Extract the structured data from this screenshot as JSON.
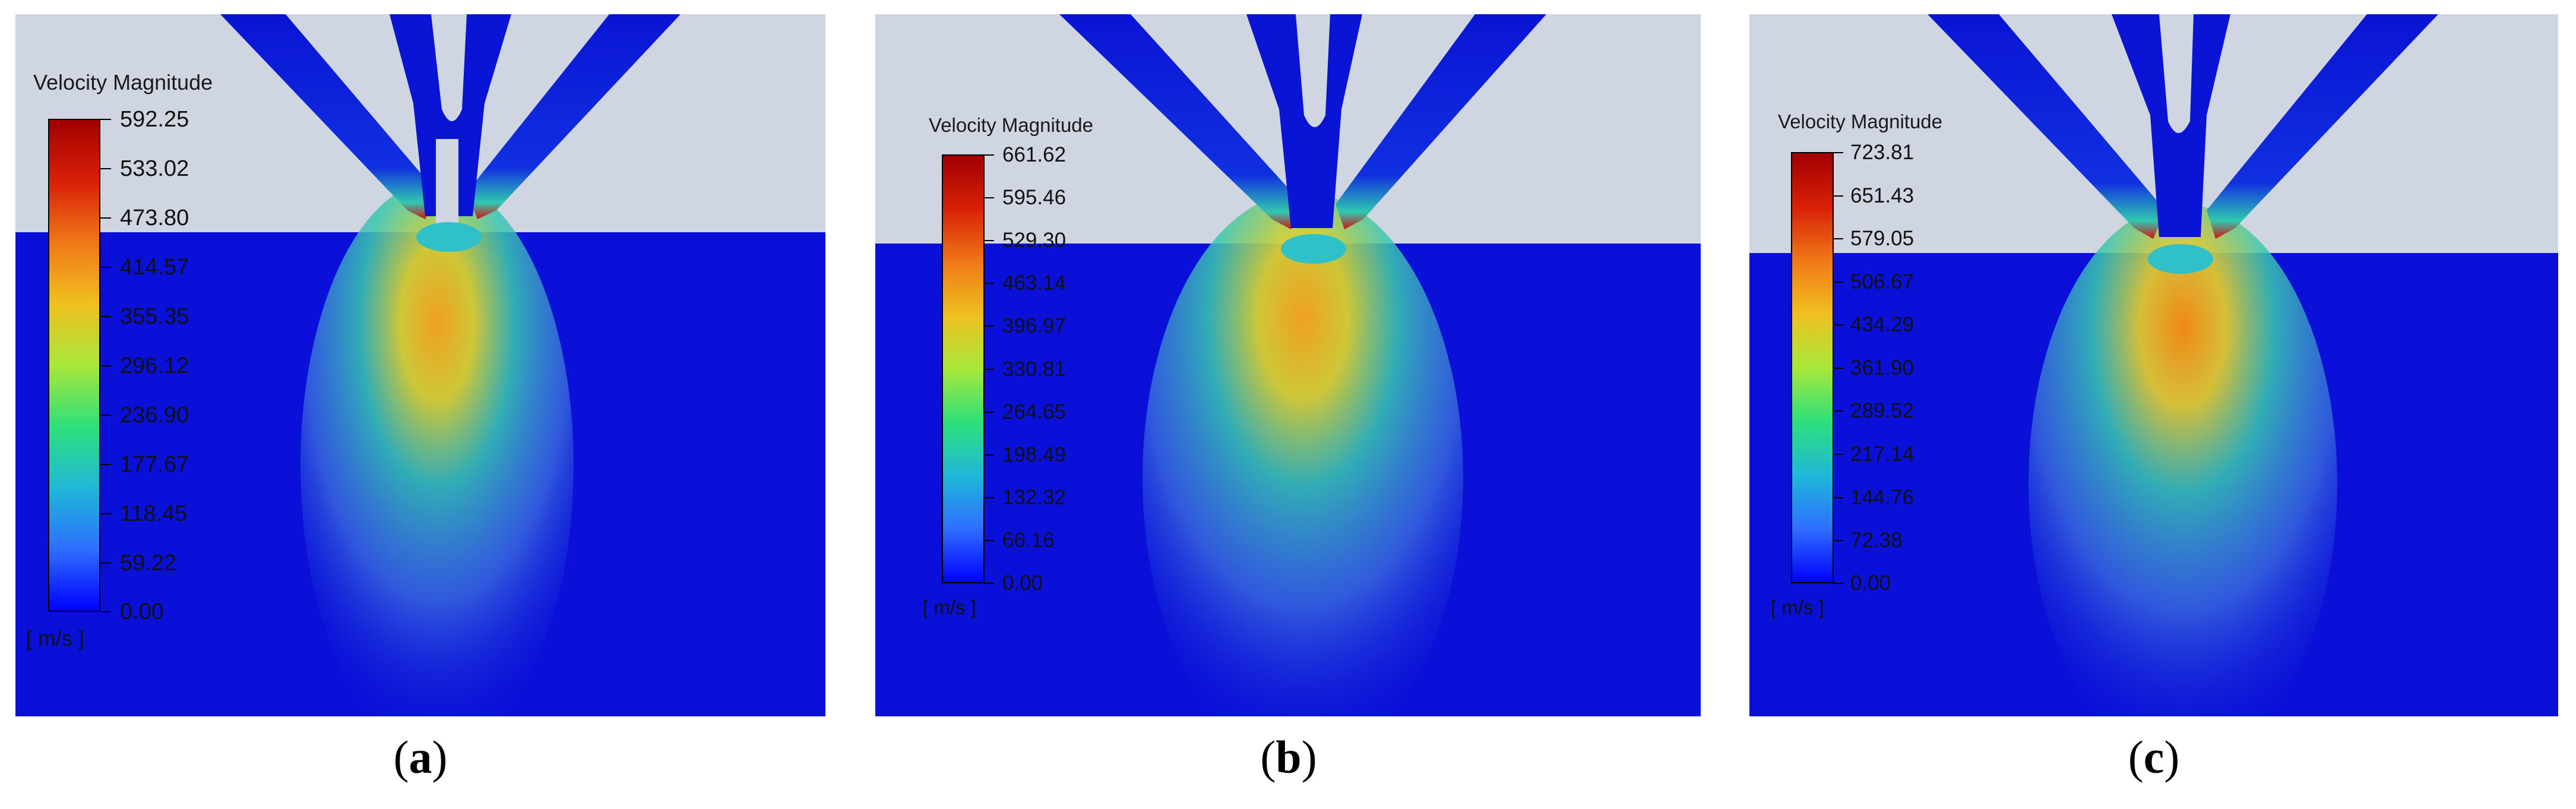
{
  "panels": [
    {
      "title": "Velocity Magnitude",
      "units": "[ m/s ]",
      "caption_letter": "a",
      "ticks": [
        "592.25",
        "533.02",
        "473.80",
        "414.57",
        "355.35",
        "296.12",
        "236.90",
        "177.67",
        "118.45",
        "59.22",
        "0.00"
      ]
    },
    {
      "title": "Velocity Magnitude",
      "units": "[ m/s ]",
      "caption_letter": "b",
      "ticks": [
        "661.62",
        "595.46",
        "529.30",
        "463.14",
        "396.97",
        "330.81",
        "264.65",
        "198.49",
        "132.32",
        "66.16",
        "0.00"
      ]
    },
    {
      "title": "Velocity Magnitude",
      "units": "[ m/s ]",
      "caption_letter": "c",
      "ticks": [
        "723.81",
        "651.43",
        "579.05",
        "506.67",
        "434.29",
        "361.90",
        "289.52",
        "217.14",
        "144.76",
        "72.38",
        "0.00"
      ]
    }
  ],
  "colors": {
    "background_gas": "#d0d5e2",
    "domain_blue": "#0a10d8",
    "nozzle_blue": "#0a14d4",
    "colormap": [
      "#0000ff",
      "#2f6fff",
      "#1fb8d8",
      "#2ee07a",
      "#a8e83a",
      "#f0c020",
      "#f07818",
      "#d82008",
      "#a00000"
    ]
  }
}
